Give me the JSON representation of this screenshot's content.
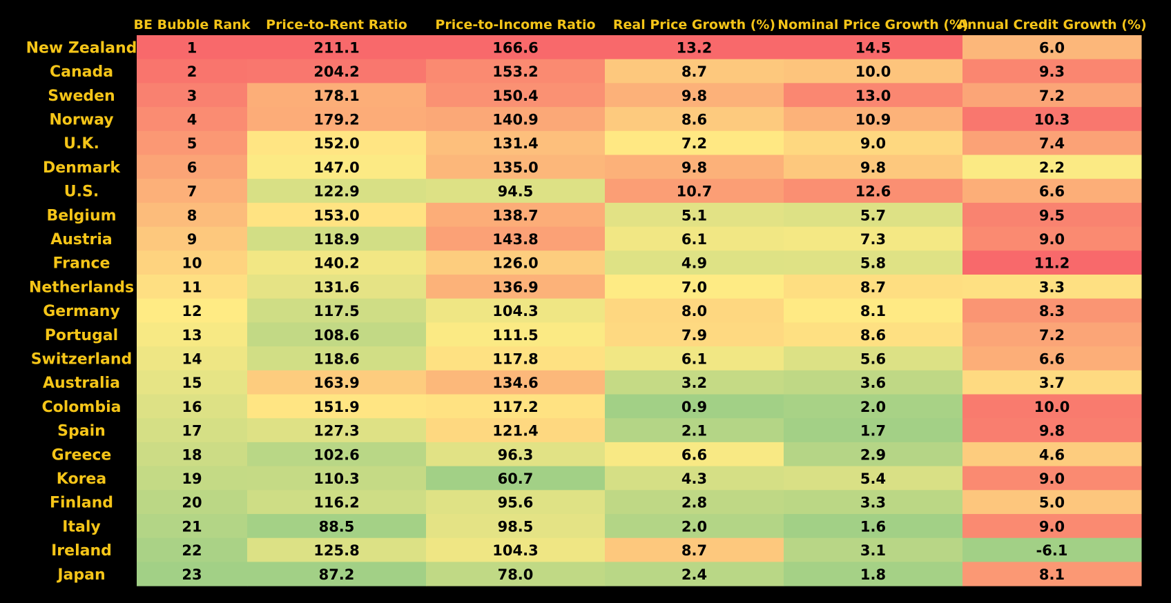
{
  "chart_data": {
    "type": "heatmap",
    "columns": [
      "BE Bubble Rank",
      "Price-to-Rent Ratio",
      "Price-to-Income Ratio",
      "Real Price Growth (%)",
      "Nominal Price Growth (%)",
      "Annual Credit Growth (%)"
    ],
    "rows": [
      {
        "country": "New Zealand",
        "values": [
          "1",
          "211.1",
          "166.6",
          "13.2",
          "14.5",
          "6.0"
        ]
      },
      {
        "country": "Canada",
        "values": [
          "2",
          "204.2",
          "153.2",
          "8.7",
          "10.0",
          "9.3"
        ]
      },
      {
        "country": "Sweden",
        "values": [
          "3",
          "178.1",
          "150.4",
          "9.8",
          "13.0",
          "7.2"
        ]
      },
      {
        "country": "Norway",
        "values": [
          "4",
          "179.2",
          "140.9",
          "8.6",
          "10.9",
          "10.3"
        ]
      },
      {
        "country": "U.K.",
        "values": [
          "5",
          "152.0",
          "131.4",
          "7.2",
          "9.0",
          "7.4"
        ]
      },
      {
        "country": "Denmark",
        "values": [
          "6",
          "147.0",
          "135.0",
          "9.8",
          "9.8",
          "2.2"
        ]
      },
      {
        "country": "U.S.",
        "values": [
          "7",
          "122.9",
          "94.5",
          "10.7",
          "12.6",
          "6.6"
        ]
      },
      {
        "country": "Belgium",
        "values": [
          "8",
          "153.0",
          "138.7",
          "5.1",
          "5.7",
          "9.5"
        ]
      },
      {
        "country": "Austria",
        "values": [
          "9",
          "118.9",
          "143.8",
          "6.1",
          "7.3",
          "9.0"
        ]
      },
      {
        "country": "France",
        "values": [
          "10",
          "140.2",
          "126.0",
          "4.9",
          "5.8",
          "11.2"
        ]
      },
      {
        "country": "Netherlands",
        "values": [
          "11",
          "131.6",
          "136.9",
          "7.0",
          "8.7",
          "3.3"
        ]
      },
      {
        "country": "Germany",
        "values": [
          "12",
          "117.5",
          "104.3",
          "8.0",
          "8.1",
          "8.3"
        ]
      },
      {
        "country": "Portugal",
        "values": [
          "13",
          "108.6",
          "111.5",
          "7.9",
          "8.6",
          "7.2"
        ]
      },
      {
        "country": "Switzerland",
        "values": [
          "14",
          "118.6",
          "117.8",
          "6.1",
          "5.6",
          "6.6"
        ]
      },
      {
        "country": "Australia",
        "values": [
          "15",
          "163.9",
          "134.6",
          "3.2",
          "3.6",
          "3.7"
        ]
      },
      {
        "country": "Colombia",
        "values": [
          "16",
          "151.9",
          "117.2",
          "0.9",
          "2.0",
          "10.0"
        ]
      },
      {
        "country": "Spain",
        "values": [
          "17",
          "127.3",
          "121.4",
          "2.1",
          "1.7",
          "9.8"
        ]
      },
      {
        "country": "Greece",
        "values": [
          "18",
          "102.6",
          "96.3",
          "6.6",
          "2.9",
          "4.6"
        ]
      },
      {
        "country": "Korea",
        "values": [
          "19",
          "110.3",
          "60.7",
          "4.3",
          "5.4",
          "9.0"
        ]
      },
      {
        "country": "Finland",
        "values": [
          "20",
          "116.2",
          "95.6",
          "2.8",
          "3.3",
          "5.0"
        ]
      },
      {
        "country": "Italy",
        "values": [
          "21",
          "88.5",
          "98.5",
          "2.0",
          "1.6",
          "9.0"
        ]
      },
      {
        "country": "Ireland",
        "values": [
          "22",
          "125.8",
          "104.3",
          "8.7",
          "3.1",
          "-6.1"
        ]
      },
      {
        "country": "Japan",
        "values": [
          "23",
          "87.2",
          "78.0",
          "2.4",
          "1.8",
          "8.1"
        ]
      }
    ],
    "color_scale": {
      "high": "#f8696b",
      "mid": "#ffeb84",
      "low": "#a2d086",
      "rank_column_reversed": true
    },
    "colors": {
      "background": "#000000",
      "label_text": "#f5c518",
      "cell_text": "#000000"
    }
  }
}
